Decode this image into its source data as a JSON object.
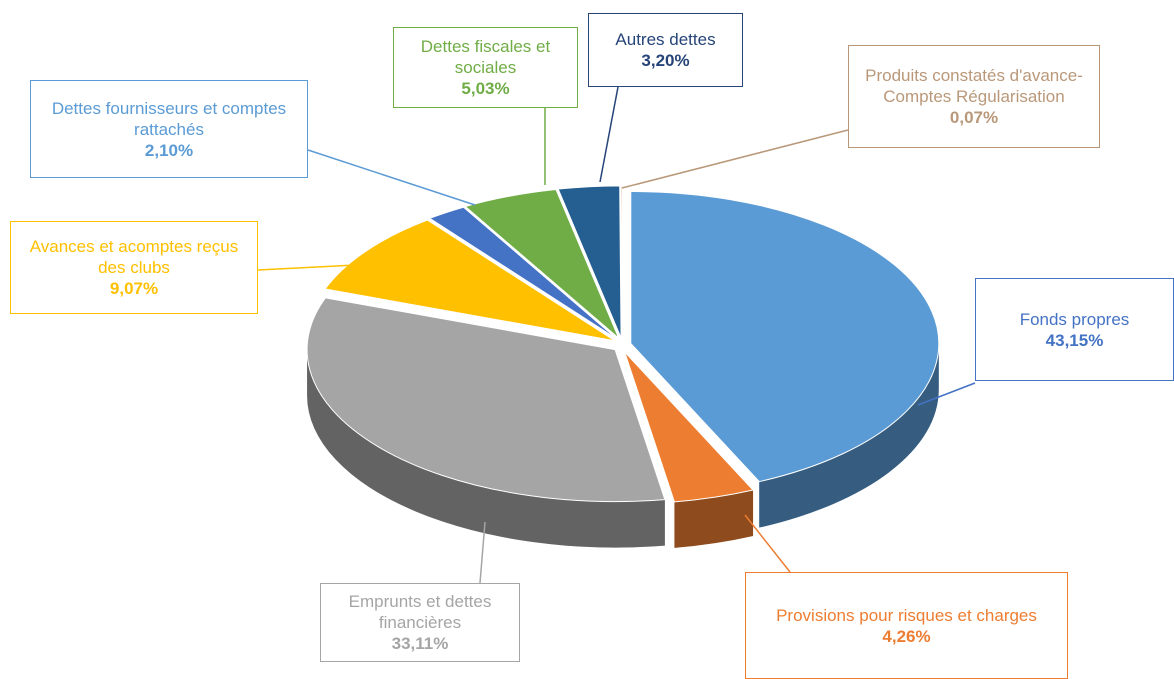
{
  "chart_data": {
    "type": "pie",
    "categories": [
      "Fonds propres",
      "Provisions pour risques et charges",
      "Emprunts et dettes financières",
      "Avances et acomptes reçus des clubs",
      "Dettes fournisseurs et comptes rattachés",
      "Dettes fiscales et sociales",
      "Autres dettes",
      "Produits constatés d'avance- Comptes Régularisation"
    ],
    "values": [
      43.15,
      4.26,
      33.11,
      9.07,
      2.1,
      5.03,
      3.2,
      0.07
    ],
    "value_labels": [
      "43,15%",
      "4,26%",
      "33,11%",
      "9,07%",
      "2,10%",
      "5,03%",
      "3,20%",
      "0,07%"
    ],
    "colors": [
      "#5b9bd5",
      "#ed7d31",
      "#a5a5a5",
      "#ffc000",
      "#4472c4",
      "#70ad47",
      "#255e91",
      "#c9a98a"
    ]
  }
}
